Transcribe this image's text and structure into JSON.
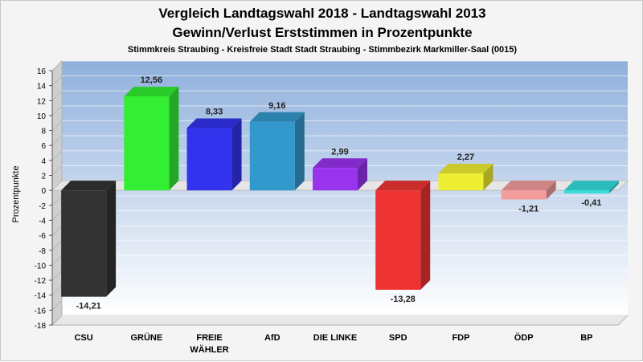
{
  "chart_data": {
    "type": "bar",
    "title_line1": "Vergleich Landtagswahl 2018 - Landtagswahl 2013",
    "title_line2": "Gewinn/Verlust Erststimmen in Prozentpunkte",
    "subtitle": "Stimmkreis Straubing - Kreisfreie Stadt Stadt Straubing - Stimmbezirk Markmiller-Saal (0015)",
    "ylabel": "Prozentpunkte",
    "xlabel": "",
    "ylim": [
      -18,
      16
    ],
    "yticks": [
      16,
      14,
      12,
      10,
      8,
      6,
      4,
      2,
      0,
      -2,
      -4,
      -6,
      -8,
      -10,
      -12,
      -14,
      -16,
      -18
    ],
    "grid": true,
    "categories": [
      {
        "line1": "CSU",
        "line2": ""
      },
      {
        "line1": "GRÜNE",
        "line2": ""
      },
      {
        "line1": "FREIE",
        "line2": "WÄHLER"
      },
      {
        "line1": "AfD",
        "line2": ""
      },
      {
        "line1": "DIE LINKE",
        "line2": ""
      },
      {
        "line1": "SPD",
        "line2": ""
      },
      {
        "line1": "FDP",
        "line2": ""
      },
      {
        "line1": "ÖDP",
        "line2": ""
      },
      {
        "line1": "BP",
        "line2": ""
      }
    ],
    "values": [
      -14.21,
      12.56,
      8.33,
      9.16,
      2.99,
      -13.28,
      2.27,
      -1.21,
      -0.41
    ],
    "value_labels": [
      "-14,21",
      "12,56",
      "8,33",
      "9,16",
      "2,99",
      "-13,28",
      "2,27",
      "-1,21",
      "-0,41"
    ],
    "colors": [
      "#333333",
      "#33ee33",
      "#3333ee",
      "#3399cc",
      "#9933ee",
      "#ee3333",
      "#eeee33",
      "#f29c9c",
      "#33dddd"
    ]
  }
}
